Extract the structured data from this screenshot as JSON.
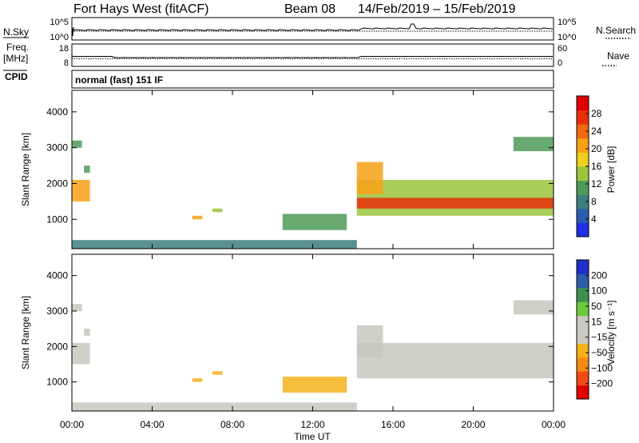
{
  "header": {
    "station": "Fort Hays West (fitACF)",
    "beam": "Beam 08",
    "date_range": "14/Feb/2019 – 15/Feb/2019"
  },
  "strips": {
    "nsky_label": "N.Sky",
    "nsky_ticks": [
      "10^5",
      "10^0"
    ],
    "nsearch_label": "N.Search",
    "nsearch_ticks": [
      "10^5",
      "10^0"
    ],
    "freq_label_line1": "Freq.",
    "freq_label_line2": "[MHz]",
    "freq_ticks": [
      "18",
      "8"
    ],
    "nave_label": "Nave",
    "nave_ticks": [
      "60",
      "0"
    ],
    "cpid_label": "CPID",
    "cpid_text": "normal (fast) 151 IF"
  },
  "chart_data": [
    {
      "type": "heatmap",
      "name": "power",
      "ylabel": "Slant Range [km]",
      "ylim": [
        180,
        4600
      ],
      "y_ticks": [
        1000,
        2000,
        3000,
        4000
      ],
      "x_ticks": [
        "00:00",
        "04:00",
        "08:00",
        "12:00",
        "16:00",
        "20:00",
        "00:00"
      ],
      "xlim_hours": [
        0,
        24
      ],
      "colorbar": {
        "label": "Power [dB]",
        "ticks": [
          "4",
          "8",
          "12",
          "16",
          "20",
          "24",
          "28"
        ],
        "range": [
          0,
          30
        ],
        "colors": [
          "#1f2fe6",
          "#2c5bb0",
          "#3b7f7e",
          "#4e9a58",
          "#9ac63c",
          "#f0d020",
          "#f7a116",
          "#f26a0e",
          "#e8300b",
          "#e00000"
        ]
      },
      "regions": [
        {
          "t0": 0.0,
          "t1": 0.9,
          "r0": 1500,
          "r1": 2100,
          "value": 20
        },
        {
          "t0": 0.0,
          "t1": 0.5,
          "r0": 3000,
          "r1": 3200,
          "value": 10
        },
        {
          "t0": 0.6,
          "t1": 0.9,
          "r0": 2300,
          "r1": 2500,
          "value": 10
        },
        {
          "t0": 6.0,
          "t1": 6.5,
          "r0": 1000,
          "r1": 1100,
          "value": 18
        },
        {
          "t0": 7.0,
          "t1": 7.5,
          "r0": 1200,
          "r1": 1300,
          "value": 12
        },
        {
          "t0": 0.0,
          "t1": 14.2,
          "r0": 180,
          "r1": 420,
          "value": 6
        },
        {
          "t0": 10.5,
          "t1": 13.7,
          "r0": 700,
          "r1": 1150,
          "value": 10
        },
        {
          "t0": 14.2,
          "t1": 24.0,
          "r0": 1100,
          "r1": 2100,
          "value": 14
        },
        {
          "t0": 14.2,
          "t1": 24.0,
          "r0": 1300,
          "r1": 1600,
          "value": 26
        },
        {
          "t0": 14.2,
          "t1": 15.5,
          "r0": 1700,
          "r1": 2600,
          "value": 18
        },
        {
          "t0": 22.0,
          "t1": 24.0,
          "r0": 2900,
          "r1": 3300,
          "value": 10
        }
      ]
    },
    {
      "type": "heatmap",
      "name": "velocity",
      "ylabel": "Slant Range [km]",
      "ylim": [
        180,
        4600
      ],
      "y_ticks": [
        1000,
        2000,
        3000,
        4000
      ],
      "x_ticks": [
        "00:00",
        "04:00",
        "08:00",
        "12:00",
        "16:00",
        "20:00",
        "00:00"
      ],
      "xlim_hours": [
        0,
        24
      ],
      "xlabel": "Time UT",
      "colorbar": {
        "label": "Velocity [m s⁻¹]",
        "ticks": [
          "200",
          "100",
          "50",
          "15",
          "−15",
          "−50",
          "−100",
          "−200"
        ],
        "range": [
          -250,
          250
        ],
        "colors": [
          "#e00000",
          "#f24a10",
          "#f58a12",
          "#f4b11a",
          "#c8c8c0",
          "#c8c8c0",
          "#6cc93c",
          "#3d8f4f",
          "#2c5ba8",
          "#2030c8"
        ]
      },
      "regions": [
        {
          "t0": 0.0,
          "t1": 0.9,
          "r0": 1500,
          "r1": 2100,
          "value": 0
        },
        {
          "t0": 0.0,
          "t1": 0.5,
          "r0": 3000,
          "r1": 3200,
          "value": 0
        },
        {
          "t0": 0.6,
          "t1": 0.9,
          "r0": 2300,
          "r1": 2500,
          "value": 0
        },
        {
          "t0": 6.0,
          "t1": 6.5,
          "r0": 1000,
          "r1": 1100,
          "value": -60
        },
        {
          "t0": 7.0,
          "t1": 7.5,
          "r0": 1200,
          "r1": 1300,
          "value": -80
        },
        {
          "t0": 0.0,
          "t1": 14.2,
          "r0": 180,
          "r1": 420,
          "value": 30
        },
        {
          "t0": 10.5,
          "t1": 13.7,
          "r0": 700,
          "r1": 1150,
          "value": -60
        },
        {
          "t0": 14.2,
          "t1": 24.0,
          "r0": 1100,
          "r1": 2100,
          "value": 0
        },
        {
          "t0": 14.2,
          "t1": 15.5,
          "r0": 1700,
          "r1": 2600,
          "value": 0
        },
        {
          "t0": 22.0,
          "t1": 24.0,
          "r0": 2900,
          "r1": 3300,
          "value": 0
        }
      ]
    }
  ]
}
